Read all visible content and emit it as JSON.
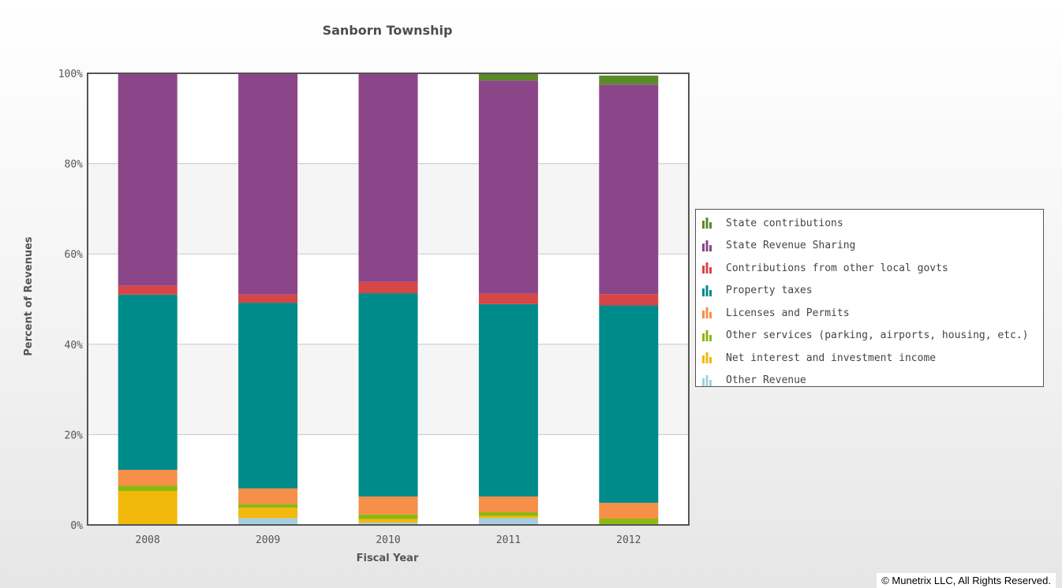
{
  "chart_data": {
    "type": "bar",
    "stacked": true,
    "percent": true,
    "title": "Sanborn Township",
    "xlabel": "Fiscal Year",
    "ylabel": "Percent of Revenues",
    "ylim": [
      0,
      100
    ],
    "yticks": [
      "0%",
      "20%",
      "40%",
      "60%",
      "80%",
      "100%"
    ],
    "categories": [
      "2008",
      "2009",
      "2010",
      "2011",
      "2012"
    ],
    "series": [
      {
        "name": "Other Revenue",
        "color": "#a6cee3",
        "values": [
          0,
          1.5,
          0.5,
          1.5,
          0
        ]
      },
      {
        "name": "Net interest and investment income",
        "color": "#f2b90c",
        "values": [
          7.5,
          2.3,
          0.8,
          0.5,
          0.2
        ]
      },
      {
        "name": "Other services (parking, airports, housing, etc.)",
        "color": "#8db80e",
        "values": [
          1.2,
          0.8,
          1.0,
          0.8,
          1.2
        ]
      },
      {
        "name": "Licenses and Permits",
        "color": "#f68f48",
        "values": [
          3.5,
          3.5,
          4.0,
          3.5,
          3.5
        ]
      },
      {
        "name": "Property taxes",
        "color": "#008b8b",
        "values": [
          38.8,
          41.1,
          45.0,
          42.6,
          43.7
        ]
      },
      {
        "name": "Contributions from other local govts",
        "color": "#d84545",
        "values": [
          2.0,
          1.8,
          2.5,
          2.3,
          2.5
        ]
      },
      {
        "name": "State Revenue Sharing",
        "color": "#8b468a",
        "values": [
          47.0,
          49.0,
          46.2,
          47.2,
          46.4
        ]
      },
      {
        "name": "State contributions",
        "color": "#5a8a2a",
        "values": [
          0,
          0,
          0,
          1.6,
          2.0
        ]
      }
    ],
    "legend": {
      "placement": "right",
      "order": [
        "State contributions",
        "State Revenue Sharing",
        "Contributions from other local govts",
        "Property taxes",
        "Licenses and Permits",
        "Other services (parking, airports, housing, etc.)",
        "Net interest and investment income",
        "Other Revenue"
      ]
    },
    "grid": true
  },
  "copyright": "© Munetrix LLC, All Rights Reserved.",
  "colors": {
    "plot_band": "#f5f5f5",
    "gridline": "#c8c8c8",
    "plot_border": "#555555"
  }
}
